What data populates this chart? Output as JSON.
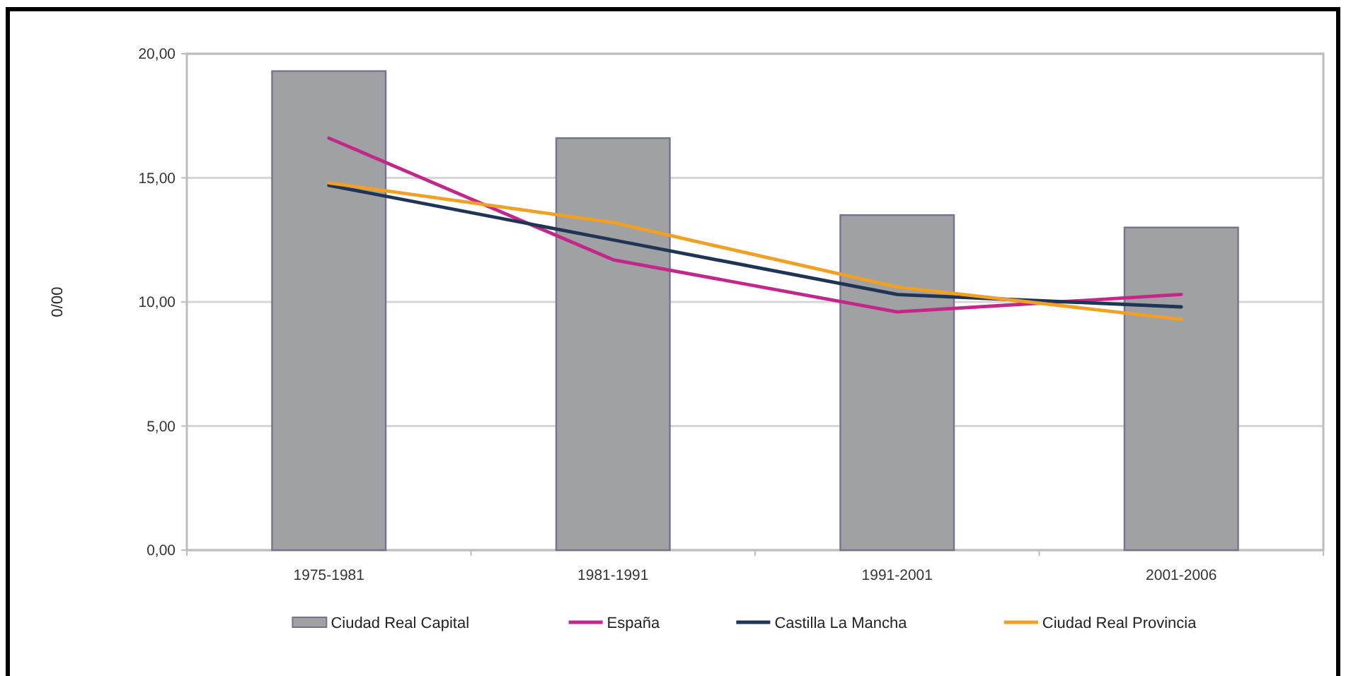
{
  "chart_data": {
    "type": "bar",
    "ylabel": "0/00",
    "categories": [
      "1975-1981",
      "1981-1991",
      "1991-2001",
      "2001-2006"
    ],
    "series": [
      {
        "name": "Ciudad Real Capital",
        "color": "#a0a1a2",
        "values": [
          19.3,
          16.6,
          13.5,
          13.0
        ]
      },
      {
        "name": "España",
        "type": "line",
        "color": "#c2288a",
        "values": [
          16.6,
          11.7,
          9.6,
          10.3
        ]
      },
      {
        "name": "Castilla La Mancha",
        "type": "line",
        "color": "#1f3553",
        "values": [
          14.7,
          12.5,
          10.3,
          9.8
        ]
      },
      {
        "name": "Ciudad Real Provincia",
        "type": "line",
        "color": "#f0a024",
        "values": [
          14.8,
          13.2,
          10.6,
          9.3
        ]
      }
    ],
    "ylim": [
      0,
      20
    ],
    "yticks": [
      {
        "value": 0,
        "label": "0,00"
      },
      {
        "value": 5,
        "label": "5,00"
      },
      {
        "value": 10,
        "label": "10,00"
      },
      {
        "value": 15,
        "label": "15,00"
      },
      {
        "value": 20,
        "label": "20,00"
      }
    ],
    "grid": "y",
    "legend": "bottom"
  }
}
